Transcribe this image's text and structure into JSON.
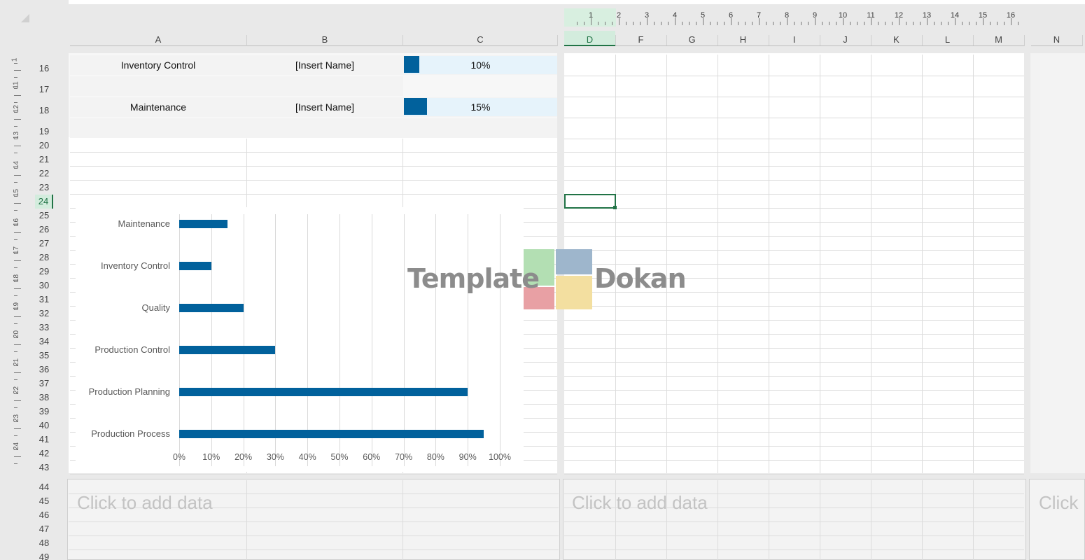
{
  "column_headers": [
    "A",
    "B",
    "C",
    "D",
    "F",
    "G",
    "H",
    "I",
    "J",
    "K",
    "L",
    "M",
    "N"
  ],
  "ruler_numbers": [
    "1",
    "2",
    "3",
    "4",
    "5",
    "6",
    "7",
    "8",
    "9",
    "10",
    "11",
    "12",
    "13",
    "14",
    "15",
    "16"
  ],
  "vruler_numbers": [
    "1",
    "11",
    "12",
    "13",
    "14",
    "15",
    "16",
    "17",
    "18",
    "19",
    "20",
    "21",
    "22",
    "23",
    "24"
  ],
  "row_numbers": [
    "16",
    "17",
    "18",
    "19",
    "20",
    "21",
    "22",
    "23",
    "24",
    "25",
    "26",
    "27",
    "28",
    "29",
    "30",
    "31",
    "32",
    "33",
    "34",
    "35",
    "36",
    "37",
    "38",
    "39",
    "40",
    "41",
    "42",
    "43",
    "44",
    "45",
    "46",
    "47",
    "48",
    "49"
  ],
  "selected_row": "24",
  "selected_col": "D",
  "table_rows": [
    {
      "name": "Inventory Control",
      "owner": "[Insert Name]",
      "percent_text": "10%",
      "percent": 10
    },
    {
      "name": "Maintenance",
      "owner": "[Insert Name]",
      "percent_text": "15%",
      "percent": 15
    }
  ],
  "placeholders": [
    "Click to add data",
    "Click to add data",
    "Click"
  ],
  "watermark": {
    "left": "Template",
    "right": "Dokan"
  },
  "colors": {
    "accent": "#01619c",
    "selection": "#217346",
    "light_fill": "#e6f3fb"
  },
  "chart_data": {
    "type": "bar",
    "orientation": "horizontal",
    "categories": [
      "Maintenance",
      "Inventory Control",
      "Quality",
      "Production Control",
      "Production Planning",
      "Production Process"
    ],
    "values": [
      15,
      10,
      20,
      30,
      90,
      95
    ],
    "xlim": [
      0,
      100
    ],
    "xticks": [
      "0%",
      "10%",
      "20%",
      "30%",
      "40%",
      "50%",
      "60%",
      "70%",
      "80%",
      "90%",
      "100%"
    ],
    "grid": true,
    "legend": "none"
  }
}
